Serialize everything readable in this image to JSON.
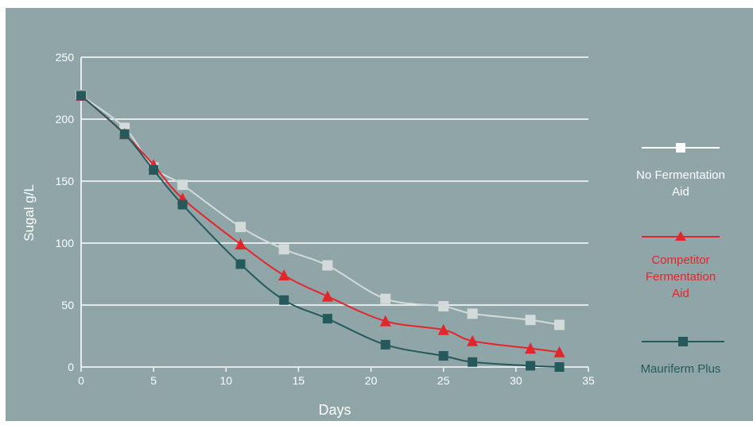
{
  "colors": {
    "background": "#8fa5a7",
    "grid": "#ffffff",
    "axis_text": "#ffffff",
    "no_aid": "#d3dada",
    "competitor": "#e3262c",
    "mauriferm": "#26595b"
  },
  "chart_data": {
    "type": "line",
    "title": "",
    "xlabel": "Days",
    "ylabel": "Sugal g/L",
    "xlim": [
      0,
      35
    ],
    "ylim": [
      0,
      250
    ],
    "x_ticks": [
      "0",
      "5",
      "10",
      "15",
      "20",
      "25",
      "30",
      "35"
    ],
    "y_ticks": [
      "0",
      "50",
      "100",
      "150",
      "200",
      "250"
    ],
    "grid": true,
    "legend_position": "right",
    "series": [
      {
        "name": "No Fermentation Aid",
        "marker": "square",
        "x": [
          0,
          3,
          5,
          7,
          11,
          14,
          17,
          21,
          25,
          27,
          31,
          33
        ],
        "y": [
          219,
          193,
          161,
          147,
          113,
          95,
          82,
          55,
          49,
          43,
          38,
          34
        ]
      },
      {
        "name": "Competitor Fermentation Aid",
        "marker": "triangle",
        "x": [
          0,
          3,
          5,
          7,
          11,
          14,
          17,
          21,
          25,
          27,
          31,
          33
        ],
        "y": [
          219,
          188,
          163,
          136,
          99,
          74,
          57,
          37,
          30,
          21,
          15,
          12
        ]
      },
      {
        "name": "Mauriferm Plus",
        "marker": "square",
        "x": [
          0,
          3,
          5,
          7,
          11,
          14,
          17,
          21,
          25,
          27,
          31,
          33
        ],
        "y": [
          219,
          188,
          159,
          131,
          83,
          54,
          39,
          18,
          9,
          4,
          1,
          0
        ]
      }
    ]
  },
  "legend": {
    "no_aid_lines": [
      "No Fermentation",
      "Aid"
    ],
    "competitor_lines": [
      "Competitor",
      "Fermentation",
      "Aid"
    ],
    "mauriferm_lines": [
      "Mauriferm Plus"
    ]
  }
}
